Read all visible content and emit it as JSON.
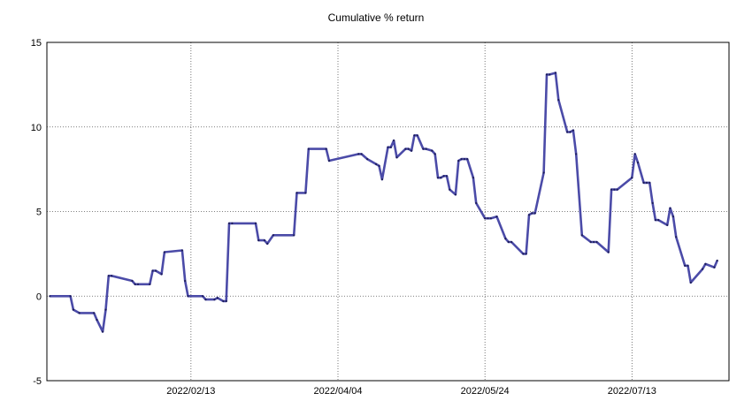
{
  "chart_data": {
    "type": "line",
    "title": "Cumulative % return",
    "xlabel": "",
    "ylabel": "",
    "ylim": [
      -5,
      15
    ],
    "yticks": [
      -5,
      0,
      5,
      10,
      15
    ],
    "xtick_labels": [
      "2022/02/13",
      "2022/04/04",
      "2022/05/24",
      "2022/07/13"
    ],
    "xtick_dates": [
      "2022-02-13",
      "2022-04-04",
      "2022-05-24",
      "2022-07-13"
    ],
    "xlim": [
      "2021-12-26",
      "2022-08-15"
    ],
    "grid": true,
    "grid_style": "dotted",
    "line_color": "#4B4BA8",
    "marker_color": "#1E1E5A",
    "series": [
      {
        "x": [
          "2021-12-27",
          "2022-01-03",
          "2022-01-04",
          "2022-01-06",
          "2022-01-11",
          "2022-01-12",
          "2022-01-14",
          "2022-01-15",
          "2022-01-16",
          "2022-01-17",
          "2022-01-24",
          "2022-01-25",
          "2022-01-26",
          "2022-01-30",
          "2022-01-31",
          "2022-02-01",
          "2022-02-03",
          "2022-02-04",
          "2022-02-10",
          "2022-02-11",
          "2022-02-12",
          "2022-02-17",
          "2022-02-18",
          "2022-02-21",
          "2022-02-22",
          "2022-02-24",
          "2022-02-25",
          "2022-02-26",
          "2022-02-27",
          "2022-03-07",
          "2022-03-08",
          "2022-03-10",
          "2022-03-11",
          "2022-03-13",
          "2022-03-20",
          "2022-03-21",
          "2022-03-24",
          "2022-03-25",
          "2022-03-31",
          "2022-04-01",
          "2022-04-11",
          "2022-04-12",
          "2022-04-14",
          "2022-04-17",
          "2022-04-18",
          "2022-04-19",
          "2022-04-21",
          "2022-04-22",
          "2022-04-23",
          "2022-04-24",
          "2022-04-27",
          "2022-04-28",
          "2022-04-29",
          "2022-04-30",
          "2022-05-01",
          "2022-05-03",
          "2022-05-04",
          "2022-05-06",
          "2022-05-07",
          "2022-05-08",
          "2022-05-09",
          "2022-05-10",
          "2022-05-11",
          "2022-05-12",
          "2022-05-14",
          "2022-05-15",
          "2022-05-16",
          "2022-05-17",
          "2022-05-18",
          "2022-05-20",
          "2022-05-21",
          "2022-05-24",
          "2022-05-25",
          "2022-05-26",
          "2022-05-28",
          "2022-05-31",
          "2022-06-01",
          "2022-06-02",
          "2022-06-06",
          "2022-06-07",
          "2022-06-08",
          "2022-06-09",
          "2022-06-10",
          "2022-06-13",
          "2022-06-14",
          "2022-06-15",
          "2022-06-17",
          "2022-06-18",
          "2022-06-21",
          "2022-06-22",
          "2022-06-23",
          "2022-06-24",
          "2022-06-26",
          "2022-06-29",
          "2022-06-30",
          "2022-07-01",
          "2022-07-05",
          "2022-07-06",
          "2022-07-07",
          "2022-07-08",
          "2022-07-13",
          "2022-07-14",
          "2022-07-15",
          "2022-07-17",
          "2022-07-18",
          "2022-07-19",
          "2022-07-20",
          "2022-07-21",
          "2022-07-22",
          "2022-07-25",
          "2022-07-26",
          "2022-07-27",
          "2022-07-28",
          "2022-07-31",
          "2022-08-01",
          "2022-08-02",
          "2022-08-06",
          "2022-08-07",
          "2022-08-10",
          "2022-08-11"
        ],
        "values": [
          0.0,
          0.0,
          -0.8,
          -1.0,
          -1.0,
          -1.4,
          -2.1,
          -0.8,
          1.2,
          1.2,
          0.9,
          0.7,
          0.7,
          0.7,
          1.5,
          1.5,
          1.3,
          2.6,
          2.7,
          0.9,
          0.0,
          0.0,
          -0.2,
          -0.2,
          -0.1,
          -0.3,
          -0.3,
          4.3,
          4.3,
          4.3,
          3.3,
          3.3,
          3.1,
          3.6,
          3.6,
          6.1,
          6.1,
          8.7,
          8.7,
          8.0,
          8.4,
          8.4,
          8.1,
          7.8,
          7.7,
          6.9,
          8.8,
          8.8,
          9.2,
          8.2,
          8.7,
          8.7,
          8.6,
          9.5,
          9.5,
          8.7,
          8.7,
          8.6,
          8.4,
          7.0,
          7.0,
          7.1,
          7.1,
          6.3,
          6.0,
          8.0,
          8.1,
          8.1,
          8.1,
          7.0,
          5.5,
          4.6,
          4.6,
          4.6,
          4.7,
          3.4,
          3.2,
          3.2,
          2.5,
          2.5,
          4.8,
          4.9,
          4.9,
          7.3,
          13.1,
          13.1,
          13.2,
          11.6,
          9.7,
          9.7,
          9.8,
          8.4,
          3.6,
          3.2,
          3.2,
          3.2,
          2.6,
          6.3,
          6.3,
          6.3,
          7.0,
          8.4,
          7.9,
          6.7,
          6.7,
          6.7,
          5.5,
          4.5,
          4.5,
          4.2,
          5.2,
          4.7,
          3.5,
          1.8,
          1.8,
          0.8,
          1.6,
          1.9,
          1.7,
          2.1
        ]
      }
    ]
  }
}
